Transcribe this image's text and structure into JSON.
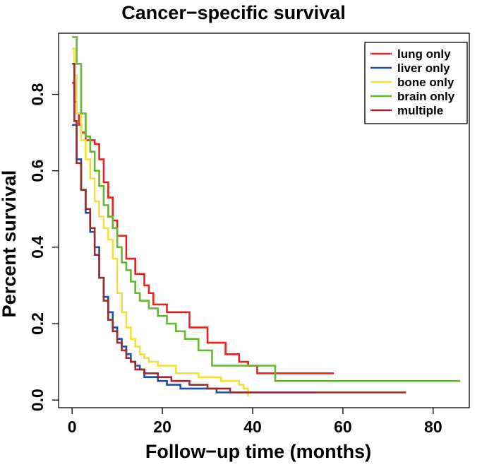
{
  "chart_data": {
    "type": "line",
    "step": true,
    "title": "Cancer−specific survival",
    "xlabel": "Follow−up time (months)",
    "ylabel": "Percent survival",
    "xlim": [
      -3,
      88
    ],
    "ylim": [
      -0.02,
      0.96
    ],
    "xticks": [
      0,
      20,
      40,
      60,
      80
    ],
    "xtick_labels": [
      "0",
      "20",
      "40",
      "60",
      "80"
    ],
    "yticks": [
      0.0,
      0.2,
      0.4,
      0.6,
      0.8
    ],
    "ytick_labels": [
      "0.0",
      "0.2",
      "0.4",
      "0.6",
      "0.8"
    ],
    "legend_position": "top-right",
    "series": [
      {
        "name": "lung only",
        "color": "#E8231F",
        "x": [
          0,
          0.5,
          1,
          1.5,
          2,
          3,
          5,
          6,
          7,
          8,
          9,
          10,
          12,
          14,
          16,
          17,
          18,
          21,
          26,
          30,
          34,
          37,
          39,
          41,
          58
        ],
        "y": [
          0.83,
          0.78,
          0.75,
          0.72,
          0.7,
          0.68,
          0.67,
          0.63,
          0.57,
          0.53,
          0.47,
          0.43,
          0.37,
          0.33,
          0.3,
          0.28,
          0.25,
          0.23,
          0.19,
          0.15,
          0.12,
          0.1,
          0.09,
          0.07,
          0.07
        ]
      },
      {
        "name": "liver only",
        "color": "#1F4FA8",
        "x": [
          0,
          1,
          2,
          3,
          4,
          5,
          6,
          7,
          8,
          9,
          10,
          11,
          12,
          13,
          14,
          15,
          16,
          19,
          21,
          24,
          32,
          54
        ],
        "y": [
          0.72,
          0.63,
          0.55,
          0.49,
          0.44,
          0.4,
          0.32,
          0.27,
          0.23,
          0.19,
          0.16,
          0.14,
          0.12,
          0.1,
          0.09,
          0.08,
          0.06,
          0.05,
          0.04,
          0.03,
          0.02,
          0.02
        ]
      },
      {
        "name": "bone only",
        "color": "#F2E13A",
        "x": [
          0,
          0.5,
          1,
          2,
          3,
          4,
          5,
          6,
          7,
          8,
          9,
          10,
          11,
          12,
          13,
          14,
          15,
          16,
          17,
          19,
          23,
          28,
          33,
          37,
          38,
          39
        ],
        "y": [
          0.92,
          0.85,
          0.75,
          0.68,
          0.63,
          0.58,
          0.52,
          0.48,
          0.45,
          0.42,
          0.37,
          0.28,
          0.23,
          0.19,
          0.16,
          0.14,
          0.12,
          0.11,
          0.1,
          0.09,
          0.07,
          0.06,
          0.05,
          0.04,
          0.03,
          0.01
        ]
      },
      {
        "name": "brain only",
        "color": "#62B832",
        "x": [
          0,
          1,
          2,
          3,
          4,
          5,
          6,
          7,
          8,
          9,
          10,
          11,
          12,
          13,
          14,
          15,
          17,
          19,
          21,
          23,
          25,
          28,
          31,
          45,
          86
        ],
        "y": [
          0.95,
          0.88,
          0.75,
          0.69,
          0.65,
          0.6,
          0.56,
          0.51,
          0.48,
          0.45,
          0.4,
          0.36,
          0.34,
          0.31,
          0.28,
          0.26,
          0.24,
          0.22,
          0.2,
          0.18,
          0.16,
          0.13,
          0.09,
          0.05,
          0.05
        ]
      },
      {
        "name": "multiple",
        "color": "#9E2A2B",
        "x": [
          0,
          0.5,
          1,
          2,
          3,
          4,
          5,
          6,
          7,
          8,
          9,
          10,
          11,
          12,
          13,
          14,
          16,
          19,
          22,
          26,
          30,
          35,
          74
        ],
        "y": [
          0.88,
          0.73,
          0.62,
          0.55,
          0.5,
          0.45,
          0.38,
          0.32,
          0.26,
          0.21,
          0.18,
          0.15,
          0.13,
          0.11,
          0.1,
          0.08,
          0.07,
          0.06,
          0.05,
          0.04,
          0.03,
          0.02,
          0.02
        ]
      }
    ]
  }
}
